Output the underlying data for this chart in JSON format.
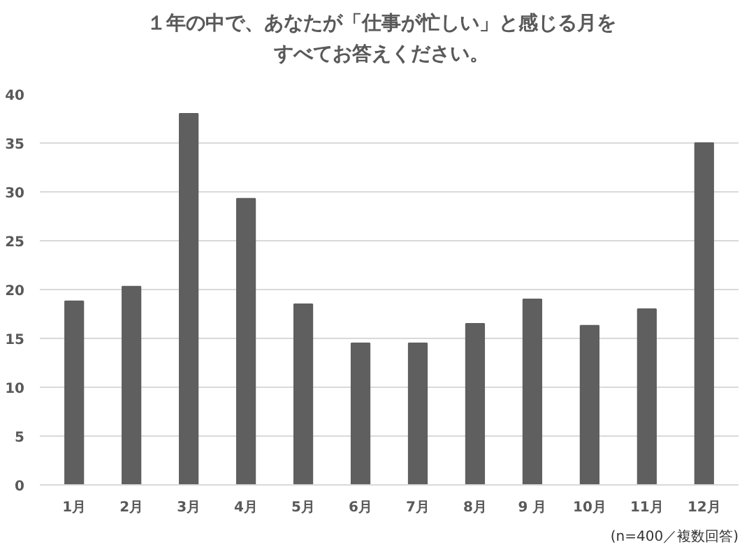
{
  "chart_data": {
    "type": "bar",
    "title": "１年の中で、あなたが「仕事が忙しい」と感じる月をすべてお答えください。",
    "categories": [
      "1月",
      "2月",
      "3月",
      "4月",
      "5月",
      "6月",
      "7月",
      "8月",
      "9 月",
      "10月",
      "11月",
      "12月"
    ],
    "values": [
      18.8,
      20.3,
      38,
      29.3,
      18.5,
      14.5,
      14.5,
      16.5,
      19,
      16.3,
      18,
      35
    ],
    "color": "#5f5f5f",
    "ylim": [
      0,
      40
    ],
    "yticks": [
      0,
      5,
      10,
      15,
      20,
      25,
      30,
      35,
      40
    ],
    "grid": "y",
    "annotations": [
      "(n=400／複数回答)"
    ]
  }
}
